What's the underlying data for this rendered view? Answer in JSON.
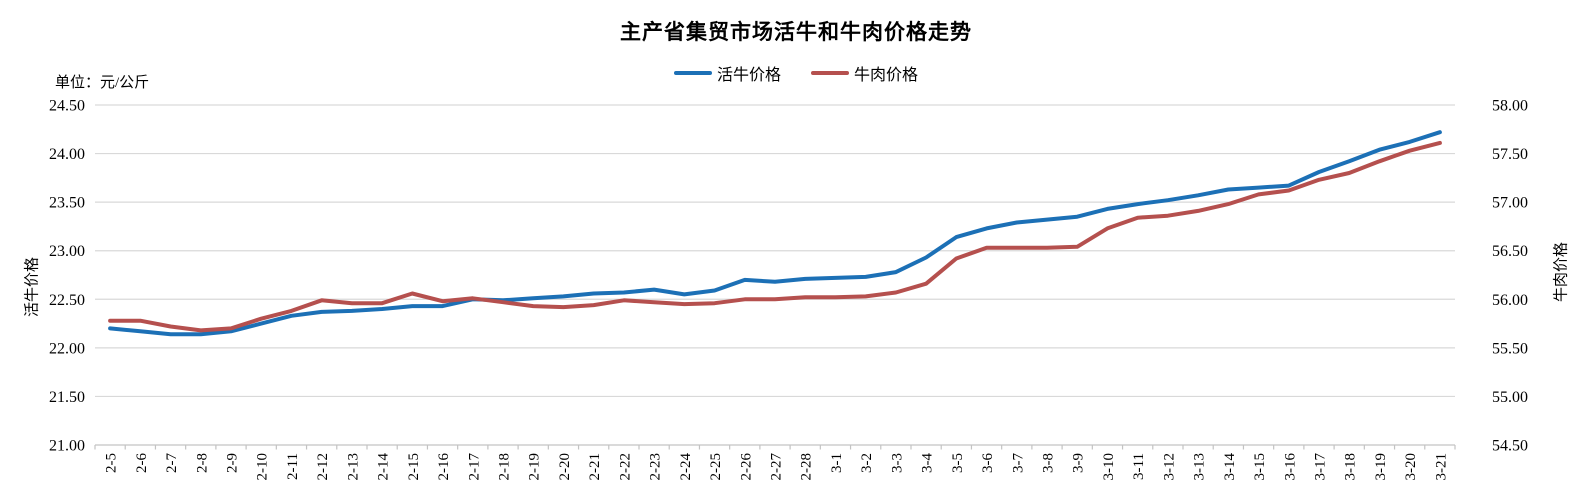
{
  "chart_data": {
    "type": "line",
    "title": "主产省集贸市场活牛和牛肉价格走势",
    "unit_label": "单位：元/公斤",
    "legend_position": "top",
    "grid": {
      "color": "#d9d9d9",
      "axis_color": "#c3c3c3",
      "grid_on": true
    },
    "x": [
      "2-5",
      "2-6",
      "2-7",
      "2-8",
      "2-9",
      "2-10",
      "2-11",
      "2-12",
      "2-13",
      "2-14",
      "2-15",
      "2-16",
      "2-17",
      "2-18",
      "2-19",
      "2-20",
      "2-21",
      "2-22",
      "2-23",
      "2-24",
      "2-25",
      "2-26",
      "2-27",
      "2-28",
      "3-1",
      "3-2",
      "3-3",
      "3-4",
      "3-5",
      "3-6",
      "3-7",
      "3-8",
      "3-9",
      "3-10",
      "3-11",
      "3-12",
      "3-13",
      "3-14",
      "3-15",
      "3-16",
      "3-17",
      "3-18",
      "3-19",
      "3-20",
      "3-21"
    ],
    "y_left": {
      "label": "活牛价格",
      "min": 21.0,
      "max": 24.5,
      "step": 0.5
    },
    "y_right": {
      "label": "牛肉价格",
      "min": 54.5,
      "max": 58.0,
      "step": 0.5
    },
    "series": [
      {
        "name": "活牛价格",
        "axis": "left",
        "color": "#1c70b6",
        "values": [
          22.2,
          22.17,
          22.14,
          22.14,
          22.17,
          22.25,
          22.33,
          22.37,
          22.38,
          22.4,
          22.43,
          22.43,
          22.5,
          22.49,
          22.51,
          22.53,
          22.56,
          22.57,
          22.6,
          22.55,
          22.59,
          22.7,
          22.68,
          22.71,
          22.72,
          22.73,
          22.78,
          22.93,
          23.14,
          23.23,
          23.29,
          23.32,
          23.35,
          23.43,
          23.48,
          23.52,
          23.57,
          23.63,
          23.65,
          23.67,
          23.81,
          23.92,
          24.04,
          24.12,
          24.22
        ]
      },
      {
        "name": "牛肉价格",
        "axis": "right",
        "color": "#b5504e",
        "values": [
          55.78,
          55.78,
          55.72,
          55.68,
          55.7,
          55.8,
          55.88,
          55.99,
          55.96,
          55.96,
          56.06,
          55.98,
          56.01,
          55.97,
          55.93,
          55.92,
          55.94,
          55.99,
          55.97,
          55.95,
          55.96,
          56.0,
          56.0,
          56.02,
          56.02,
          56.03,
          56.07,
          56.16,
          56.42,
          56.53,
          56.53,
          56.53,
          56.54,
          56.73,
          56.84,
          56.86,
          56.91,
          56.98,
          57.08,
          57.12,
          57.23,
          57.3,
          57.42,
          57.53,
          57.61
        ]
      }
    ]
  }
}
